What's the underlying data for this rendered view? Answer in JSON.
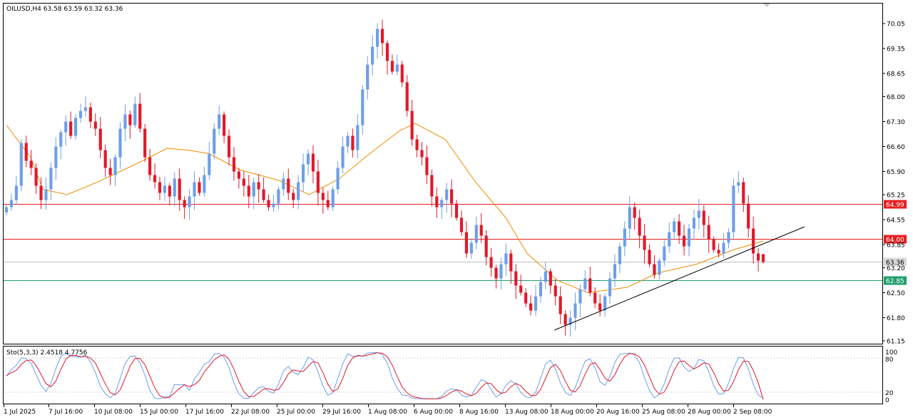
{
  "header": {
    "symbol_line": "OILUSD,H4  63.58 63.59 63.32 63.36"
  },
  "stoch": {
    "label": "Sto(5,3,3) 2.4518 4.7756",
    "axis_labels": [
      "100",
      "80",
      "20",
      "0"
    ]
  },
  "colors": {
    "bull": "#6e9fe6",
    "bear": "#e0192b",
    "ma": "#f08c00",
    "hline": "#e81e1e",
    "hline_green": "#1f9e6e",
    "trend": "#000000",
    "stoch_main": "#6e9fe6",
    "stoch_signal": "#e0192b",
    "grid_dots": "#b0b0b0"
  },
  "chart_data": {
    "type": "candlestick",
    "symbol": "OILUSD",
    "timeframe": "H4",
    "ohlc_current": {
      "open": 63.58,
      "high": 63.59,
      "low": 63.32,
      "close": 63.36
    },
    "ylim": [
      61.15,
      70.4
    ],
    "y_ticks": [
      "70.05",
      "69.35",
      "68.65",
      "68.00",
      "67.30",
      "66.60",
      "65.90",
      "65.25",
      "64.55",
      "63.85",
      "63.20",
      "62.50",
      "61.80",
      "61.15"
    ],
    "x_ticks": [
      "1 Jul 2025",
      "7 Jul 16:00",
      "10 Jul 08:00",
      "15 Jul 00:00",
      "17 Jul 16:00",
      "22 Jul 08:00",
      "25 Jul 00:00",
      "29 Jul 16:00",
      "1 Aug 08:00",
      "6 Aug 00:00",
      "8 Aug 16:00",
      "13 Aug 08:00",
      "18 Aug 00:00",
      "20 Aug 16:00",
      "25 Aug 08:00",
      "28 Aug 00:00",
      "2 Sep 08:00"
    ],
    "horizontal_lines": [
      {
        "value": 64.99,
        "label": "64.99",
        "color": "#e81e1e"
      },
      {
        "value": 64.0,
        "label": "64.00",
        "color": "#e81e1e"
      },
      {
        "value": 63.36,
        "label": "63.36",
        "color": "#c0c0c0",
        "current": true
      },
      {
        "value": 62.85,
        "label": "62.85",
        "color": "#1f9e6e"
      }
    ],
    "trendline": {
      "from_index": 181,
      "from_value": 61.45,
      "to_index": 262,
      "to_value": 64.35
    },
    "ma_series": [
      [
        0,
        67.2
      ],
      [
        8,
        66.3
      ],
      [
        12,
        65.4
      ],
      [
        20,
        65.25
      ],
      [
        30,
        65.6
      ],
      [
        45,
        66.2
      ],
      [
        53,
        66.55
      ],
      [
        60,
        66.5
      ],
      [
        67,
        66.4
      ],
      [
        77,
        65.95
      ],
      [
        90,
        65.65
      ],
      [
        100,
        65.25
      ],
      [
        110,
        65.7
      ],
      [
        120,
        66.4
      ],
      [
        130,
        67.05
      ],
      [
        135,
        67.25
      ],
      [
        145,
        66.8
      ],
      [
        155,
        65.6
      ],
      [
        165,
        64.6
      ],
      [
        172,
        63.6
      ],
      [
        182,
        62.85
      ],
      [
        192,
        62.5
      ],
      [
        205,
        62.65
      ],
      [
        215,
        63.05
      ],
      [
        228,
        63.3
      ],
      [
        240,
        63.7
      ],
      [
        250,
        63.95
      ]
    ],
    "closes": [
      64.9,
      65.1,
      65.5,
      66.7,
      66.2,
      66.0,
      65.5,
      65.1,
      65.4,
      66.0,
      66.6,
      67.0,
      67.3,
      66.9,
      67.4,
      67.6,
      67.7,
      67.3,
      67.1,
      66.5,
      66.0,
      65.8,
      66.3,
      67.1,
      67.5,
      67.2,
      67.8,
      67.1,
      66.3,
      65.8,
      65.6,
      65.3,
      65.5,
      65.2,
      65.7,
      65.1,
      64.9,
      65.2,
      65.6,
      65.3,
      65.8,
      66.4,
      67.1,
      67.5,
      66.9,
      66.3,
      65.9,
      65.7,
      65.5,
      65.2,
      65.6,
      65.4,
      65.1,
      64.9,
      65.0,
      65.4,
      65.7,
      65.3,
      65.1,
      65.6,
      66.1,
      66.4,
      65.9,
      65.3,
      65.1,
      64.9,
      65.4,
      66.0,
      66.6,
      66.9,
      66.5,
      67.2,
      68.2,
      68.9,
      69.4,
      69.9,
      69.5,
      69.0,
      68.7,
      68.9,
      68.4,
      67.6,
      66.8,
      66.5,
      66.3,
      65.8,
      65.2,
      64.9,
      65.1,
      65.4,
      65.0,
      64.6,
      64.2,
      63.6,
      63.9,
      64.4,
      64.1,
      63.5,
      63.2,
      62.9,
      63.3,
      63.6,
      63.1,
      62.7,
      62.5,
      62.2,
      62.0,
      62.4,
      62.8,
      63.1,
      62.7,
      62.4,
      61.9,
      61.6,
      61.8,
      62.2,
      62.6,
      62.9,
      62.5,
      62.2,
      62.0,
      62.4,
      62.9,
      63.3,
      63.8,
      64.3,
      64.9,
      64.6,
      64.1,
      63.7,
      63.3,
      63.0,
      63.4,
      63.8,
      64.2,
      64.5,
      64.1,
      63.8,
      64.3,
      64.6,
      64.8,
      64.4,
      64.0,
      63.7,
      63.6,
      63.9,
      64.2,
      65.5,
      65.6,
      65.0,
      64.3,
      63.6,
      63.4,
      63.36
    ]
  }
}
